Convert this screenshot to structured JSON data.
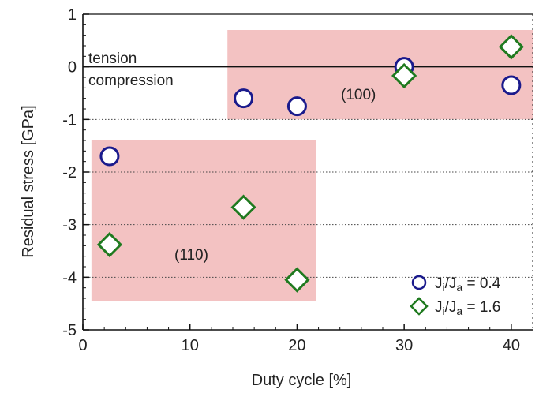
{
  "chart_data": {
    "type": "scatter",
    "xlabel": "Duty cycle [%]",
    "ylabel": "Residual stress [GPa]",
    "xlim": [
      0,
      42
    ],
    "ylim": [
      -5,
      1
    ],
    "x_ticks": [
      "0",
      "10",
      "20",
      "30",
      "40"
    ],
    "y_ticks": [
      "1",
      "0",
      "-1",
      "-2",
      "-3",
      "-4",
      "-5"
    ],
    "grid": "dotted horizontal lines at y = -1, -2, -3, -4",
    "zero_line": true,
    "regions": [
      {
        "label": "(100)",
        "x": [
          13.5,
          42
        ],
        "y": [
          -1.0,
          0.7
        ],
        "color": "#f3c2c2"
      },
      {
        "label": "(110)",
        "x": [
          0.8,
          21.8
        ],
        "y": [
          -4.45,
          -1.4
        ],
        "color": "#f3c2c2"
      }
    ],
    "annotations": {
      "tension": "tension",
      "compression": "compression",
      "region_100": "(100)",
      "region_110": "(110)"
    },
    "series": [
      {
        "name": "Ji/Ja = 0.4",
        "marker": "circle",
        "color": "#1a1a8c",
        "points": [
          {
            "x": 2.5,
            "y": -1.7
          },
          {
            "x": 15,
            "y": -0.6
          },
          {
            "x": 20,
            "y": -0.75
          },
          {
            "x": 30,
            "y": 0.0
          },
          {
            "x": 40,
            "y": -0.35
          }
        ]
      },
      {
        "name": "Ji/Ja = 1.6",
        "marker": "diamond",
        "color": "#1f7a1f",
        "points": [
          {
            "x": 2.5,
            "y": -3.38
          },
          {
            "x": 15,
            "y": -2.67
          },
          {
            "x": 20,
            "y": -4.05
          },
          {
            "x": 30,
            "y": -0.17
          },
          {
            "x": 40,
            "y": 0.38
          }
        ]
      }
    ],
    "legend": {
      "position": "bottom-right",
      "entries": [
        {
          "label_main": "J",
          "sub1": "i",
          "sep": "/J",
          "sub2": "a",
          "value": " = 0.4"
        },
        {
          "label_main": "J",
          "sub1": "i",
          "sep": "/J",
          "sub2": "a",
          "value": " = 1.6"
        }
      ]
    }
  }
}
